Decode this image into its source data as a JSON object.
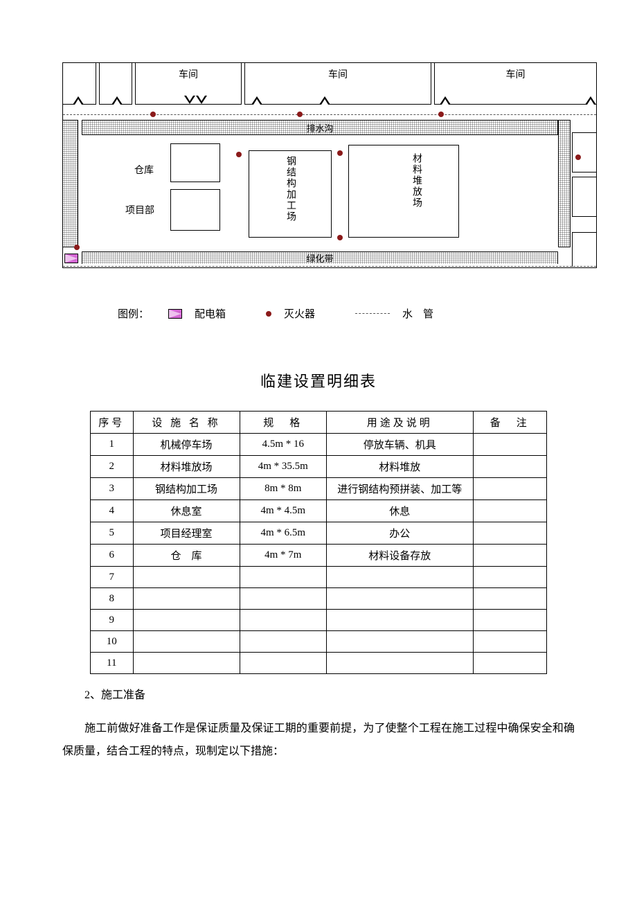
{
  "diagram": {
    "top_labels": [
      "车间",
      "车间",
      "车间"
    ],
    "drain_label": "排水沟",
    "green_label": "绿化带",
    "warehouse": "仓库",
    "project_dept": "项目部",
    "steel_yard": "钢结构加工场",
    "material_yard": "材料堆放场",
    "frame_color": "#000000",
    "hatch_color": "#bbbbbb",
    "dot_color": "#8b1a1a",
    "powerbox_color": "#d467d4"
  },
  "legend": {
    "title": "图例：",
    "items": [
      {
        "name": "配电箱"
      },
      {
        "name": "灭火器"
      },
      {
        "name": "水　管"
      }
    ]
  },
  "table": {
    "title": "临建设置明细表",
    "columns": [
      "序号",
      "设 施 名 称",
      "规　格",
      "用途及说明",
      "备　注"
    ],
    "rows": [
      [
        "1",
        "机械停车场",
        "4.5m * 16",
        "停放车辆、机具",
        ""
      ],
      [
        "2",
        "材料堆放场",
        "4m * 35.5m",
        "材料堆放",
        ""
      ],
      [
        "3",
        "钢结构加工场",
        "8m * 8m",
        "进行钢结构预拼装、加工等",
        ""
      ],
      [
        "4",
        "休息室",
        "4m * 4.5m",
        "休息",
        ""
      ],
      [
        "5",
        "项目经理室",
        "4m * 6.5m",
        "办公",
        ""
      ],
      [
        "6",
        "仓　库",
        "4m * 7m",
        "材料设备存放",
        ""
      ],
      [
        "7",
        "",
        "",
        "",
        ""
      ],
      [
        "8",
        "",
        "",
        "",
        ""
      ],
      [
        "9",
        "",
        "",
        "",
        ""
      ],
      [
        "10",
        "",
        "",
        "",
        ""
      ],
      [
        "11",
        "",
        "",
        "",
        ""
      ]
    ]
  },
  "paragraph": {
    "heading": "2、施工准备",
    "body": "施工前做好准备工作是保证质量及保证工期的重要前提，为了使整个工程在施工过程中确保安全和确保质量，结合工程的特点，现制定以下措施："
  }
}
